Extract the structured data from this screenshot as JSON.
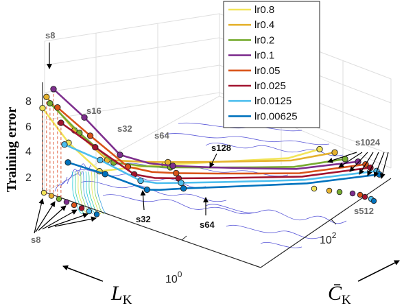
{
  "chart_data": {
    "type": "line",
    "variant": "3d-surface-with-contours",
    "ylabel": "Training error",
    "x_axis": {
      "label": "L",
      "subscript": "K",
      "scale": "log",
      "ticks": [
        "10",
        "10"
      ],
      "tick_exponents": [
        "0",
        "2"
      ]
    },
    "z_axis_label": {
      "label": "C̄",
      "subscript": "K"
    },
    "y_ticks": [
      "2",
      "4",
      "6",
      "8"
    ],
    "grid": true,
    "legend_position": "top-right",
    "series": [
      {
        "name": "lr0.8",
        "color": "#f2e45a",
        "start_values": [
          6.6,
          4.0,
          2.0
        ],
        "end_value": 1.9
      },
      {
        "name": "lr0.4",
        "color": "#e5b22e",
        "start_values": [
          7.6,
          5.1,
          3.0
        ],
        "end_value": 1.8
      },
      {
        "name": "lr0.2",
        "color": "#77ac30",
        "start_values": [
          7.2,
          5.0,
          2.9
        ],
        "end_value": 1.4
      },
      {
        "name": "lr0.1",
        "color": "#7e2f8e",
        "start_values": [
          8.4,
          6.3,
          3.6
        ],
        "end_value": 1.3
      },
      {
        "name": "lr0.05",
        "color": "#d95319",
        "start_values": [
          7.1,
          5.0,
          2.8
        ],
        "end_value": 1.2
      },
      {
        "name": "lr0.025",
        "color": "#a2142f",
        "start_values": [
          6.0,
          4.2,
          2.3
        ],
        "end_value": 1.1
      },
      {
        "name": "lr0.0125",
        "color": "#4dbeee",
        "start_values": [
          4.4,
          3.3,
          1.9
        ],
        "end_value": 1.0
      },
      {
        "name": "lr0.00625",
        "color": "#0072bd",
        "start_values": [
          3.1,
          2.3,
          1.3
        ],
        "end_value": 0.9
      }
    ],
    "annotations": [
      "s8",
      "s16",
      "s32",
      "s64",
      "s128",
      "s1024",
      "s8",
      "s32",
      "s64",
      "s512"
    ]
  },
  "colors": {
    "contour": "#5a58d8",
    "axis": "#262626",
    "grid": "#dedede",
    "arrow": "#000000"
  }
}
